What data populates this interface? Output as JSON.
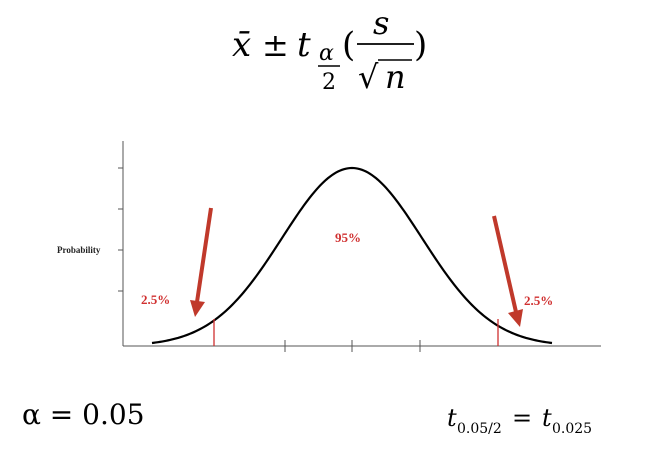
{
  "formula": {
    "xbar": "x̄",
    "pm": "±",
    "t": "t",
    "alpha": "α",
    "two": "2",
    "open_paren": "(",
    "s": "s",
    "sqrt_symbol": "√",
    "n": "n",
    "close_paren": ")"
  },
  "chart": {
    "ylabel": "Probability",
    "center_label": "95%",
    "left_tail_label": "2.5%",
    "right_tail_label": "2.5%",
    "accent_color": "#d03030"
  },
  "bottom_left": {
    "text": "α = 0.05"
  },
  "bottom_right": {
    "t1": "t",
    "sub1": "0.05/2",
    "eq": "=",
    "t2": "t",
    "sub2": "0.025"
  }
}
